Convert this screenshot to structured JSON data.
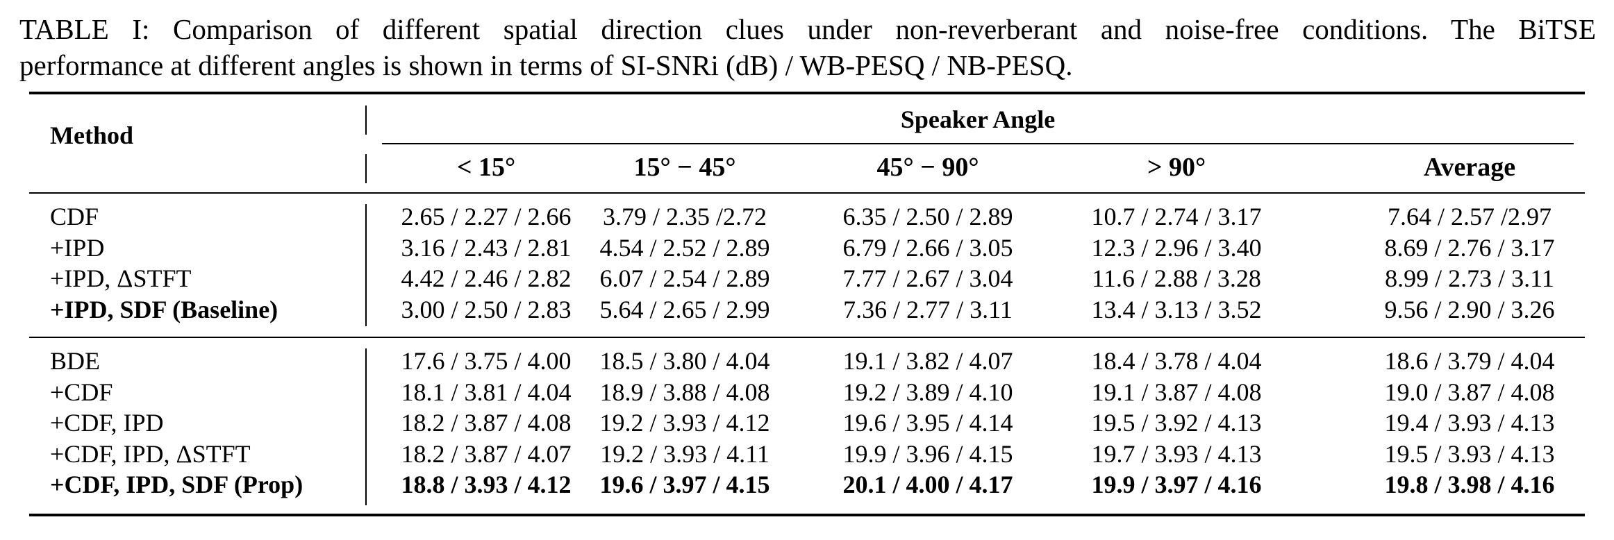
{
  "caption": {
    "line1": "TABLE I: Comparison of different spatial direction clues under non-reverberant and noise-free conditions. The BiTSE",
    "line2": "performance at different angles is shown in terms of SI-SNRi (dB) / WB-PESQ / NB-PESQ."
  },
  "table": {
    "method_header": "Method",
    "group_header": "Speaker Angle",
    "columns": [
      "< 15°",
      "15° − 45°",
      "45° − 90°",
      "> 90°",
      "Average"
    ],
    "section1": [
      {
        "method": "CDF",
        "values": [
          "2.65 / 2.27 / 2.66",
          "3.79 / 2.35 /2.72",
          "6.35 / 2.50 / 2.89",
          "10.7 / 2.74 / 3.17",
          "7.64 / 2.57 /2.97"
        ],
        "bold": false
      },
      {
        "method": "+IPD",
        "values": [
          "3.16 / 2.43 / 2.81",
          "4.54 / 2.52 / 2.89",
          "6.79 / 2.66 / 3.05",
          "12.3 / 2.96 / 3.40",
          "8.69 / 2.76 / 3.17"
        ],
        "bold": false
      },
      {
        "method": "+IPD, ΔSTFT",
        "values": [
          "4.42 / 2.46 / 2.82",
          "6.07 / 2.54 / 2.89",
          "7.77 / 2.67 / 3.04",
          "11.6 / 2.88 / 3.28",
          "8.99 / 2.73 / 3.11"
        ],
        "bold": false
      },
      {
        "method": "+IPD, SDF (Baseline)",
        "values": [
          "3.00 / 2.50 / 2.83",
          "5.64 / 2.65 / 2.99",
          "7.36 / 2.77 / 3.11",
          "13.4 / 3.13 / 3.52",
          "9.56 / 2.90 / 3.26"
        ],
        "bold": true,
        "bold_values": false
      }
    ],
    "section2": [
      {
        "method": "BDE",
        "values": [
          "17.6 / 3.75 / 4.00",
          "18.5 / 3.80 / 4.04",
          "19.1 / 3.82 / 4.07",
          "18.4 / 3.78 / 4.04",
          "18.6 / 3.79 / 4.04"
        ],
        "bold": false
      },
      {
        "method": "+CDF",
        "values": [
          "18.1 / 3.81 / 4.04",
          "18.9 / 3.88 / 4.08",
          "19.2 / 3.89 / 4.10",
          "19.1 / 3.87 / 4.08",
          "19.0 / 3.87 / 4.08"
        ],
        "bold": false
      },
      {
        "method": "+CDF, IPD",
        "values": [
          "18.2 / 3.87 / 4.08",
          "19.2 / 3.93 / 4.12",
          "19.6 / 3.95 / 4.14",
          "19.5 / 3.92 / 4.13",
          "19.4 / 3.93 / 4.13"
        ],
        "bold": false
      },
      {
        "method": "+CDF, IPD, ΔSTFT",
        "values": [
          "18.2 / 3.87 / 4.07",
          "19.2 / 3.93 / 4.11",
          "19.9 / 3.96 / 4.15",
          "19.7 / 3.93 / 4.13",
          "19.5 / 3.93 / 4.13"
        ],
        "bold": false
      },
      {
        "method": "+CDF, IPD, SDF (Prop)",
        "values": [
          "18.8 / 3.93 / 4.12",
          "19.6 / 3.97 / 4.15",
          "20.1 / 4.00 / 4.17",
          "19.9 / 3.97 / 4.16",
          "19.8 / 3.98 / 4.16"
        ],
        "bold": true,
        "bold_values": true
      }
    ]
  }
}
